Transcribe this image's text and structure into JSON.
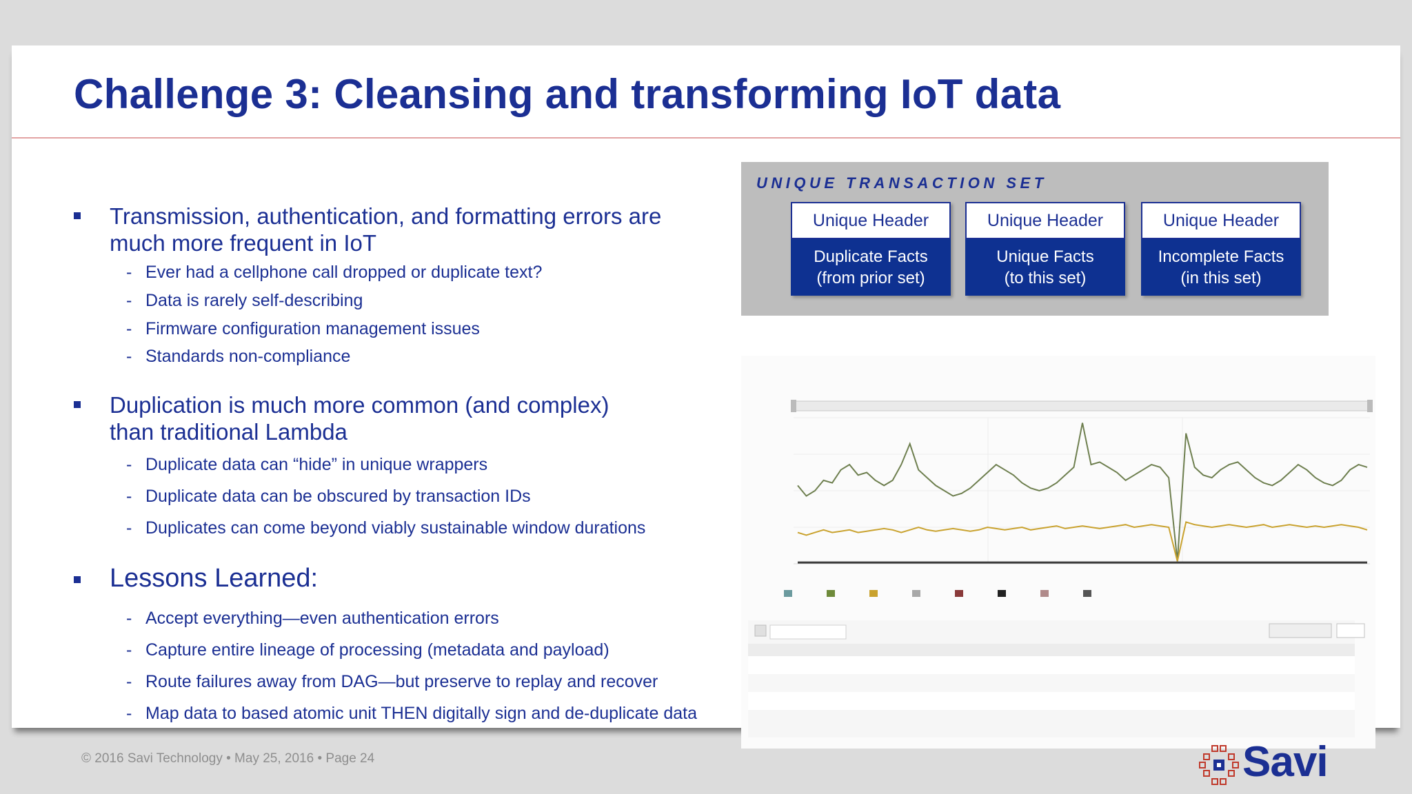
{
  "title": "Challenge 3: Cleansing and transforming IoT data",
  "bullets": [
    {
      "lines": [
        "Transmission, authentication, and formatting errors are",
        "much more frequent in IoT"
      ],
      "subs": [
        "Ever had a cellphone call dropped or duplicate text?",
        "Data is rarely self-describing",
        "Firmware configuration management issues",
        "Standards non-compliance"
      ]
    },
    {
      "lines": [
        "Duplication is much more common (and complex)",
        "than traditional Lambda"
      ],
      "subs": [
        "Duplicate data can “hide” in unique wrappers",
        "Duplicate data can be obscured by transaction IDs",
        "Duplicates can come beyond viably sustainable window durations"
      ]
    },
    {
      "lines": [
        "Lessons Learned:"
      ],
      "subs": [
        "Accept everything—even authentication errors",
        "Capture entire lineage of processing (metadata and payload)",
        "Route failures away from DAG—but preserve to replay and recover",
        "Map data to based atomic unit THEN digitally sign and de-duplicate data"
      ]
    }
  ],
  "transaction_set": {
    "title": "UNIQUE TRANSACTION SET",
    "boxes": [
      {
        "header": "Unique Header",
        "body1": "Duplicate Facts",
        "body2": "(from prior set)"
      },
      {
        "header": "Unique Header",
        "body1": "Unique Facts",
        "body2": "(to this set)"
      },
      {
        "header": "Unique Header",
        "body1": "Incomplete Facts",
        "body2": "(in this set)"
      }
    ]
  },
  "chart_data": {
    "type": "line",
    "series": [
      {
        "color": "#6e7f4f",
        "values": [
          3.0,
          2.6,
          2.8,
          3.2,
          3.1,
          3.6,
          3.8,
          3.4,
          3.5,
          3.2,
          3.0,
          3.2,
          3.8,
          4.6,
          3.6,
          3.3,
          3.0,
          2.8,
          2.6,
          2.7,
          2.9,
          3.2,
          3.5,
          3.8,
          3.6,
          3.4,
          3.1,
          2.9,
          2.8,
          2.9,
          3.1,
          3.4,
          3.7,
          5.4,
          3.8,
          3.9,
          3.7,
          3.5,
          3.2,
          3.4,
          3.6,
          3.8,
          3.7,
          3.3,
          0.1,
          5.0,
          3.7,
          3.4,
          3.3,
          3.6,
          3.8,
          3.9,
          3.6,
          3.3,
          3.1,
          3.0,
          3.2,
          3.5,
          3.8,
          3.6,
          3.3,
          3.1,
          3.0,
          3.2,
          3.6,
          3.8,
          3.7
        ]
      },
      {
        "color": "#c9a22e",
        "values": [
          1.2,
          1.1,
          1.2,
          1.3,
          1.2,
          1.25,
          1.3,
          1.2,
          1.25,
          1.3,
          1.35,
          1.3,
          1.2,
          1.3,
          1.4,
          1.3,
          1.25,
          1.3,
          1.35,
          1.3,
          1.25,
          1.3,
          1.4,
          1.35,
          1.3,
          1.35,
          1.4,
          1.3,
          1.35,
          1.4,
          1.45,
          1.35,
          1.4,
          1.45,
          1.4,
          1.35,
          1.4,
          1.45,
          1.5,
          1.4,
          1.45,
          1.5,
          1.45,
          1.4,
          0.1,
          1.6,
          1.5,
          1.45,
          1.4,
          1.45,
          1.5,
          1.45,
          1.4,
          1.45,
          1.5,
          1.4,
          1.45,
          1.5,
          1.45,
          1.4,
          1.45,
          1.4,
          1.45,
          1.5,
          1.45,
          1.4,
          1.3
        ]
      },
      {
        "color": "#3b3b3b",
        "values": [
          0.05,
          0.05,
          0.05,
          0.05,
          0.05,
          0.05,
          0.05,
          0.05,
          0.05,
          0.05,
          0.05,
          0.05,
          0.05,
          0.05,
          0.05,
          0.05,
          0.05,
          0.05,
          0.05,
          0.05,
          0.05,
          0.05,
          0.05,
          0.05,
          0.05,
          0.05,
          0.05,
          0.05,
          0.05,
          0.05,
          0.05,
          0.05,
          0.05,
          0.05,
          0.05,
          0.05,
          0.05,
          0.05,
          0.05,
          0.05,
          0.05,
          0.05,
          0.05,
          0.05,
          0.05,
          0.05,
          0.05,
          0.05,
          0.05,
          0.05,
          0.05,
          0.05,
          0.05,
          0.05,
          0.05,
          0.05,
          0.05,
          0.05,
          0.05,
          0.05,
          0.05,
          0.05,
          0.05,
          0.05,
          0.05,
          0.05,
          0.05
        ]
      }
    ],
    "legend_colors": [
      "#6b9a9e",
      "#6e8a3a",
      "#c9a22e",
      "#a8a8a8",
      "#8a3a3a",
      "#222222",
      "#b08a8a",
      "#555555"
    ],
    "ylim": [
      0,
      5.6
    ]
  },
  "footer": {
    "text": "© 2016 Savi Technology •  May 25, 2016  •  Page 24",
    "logo": "Savi"
  }
}
